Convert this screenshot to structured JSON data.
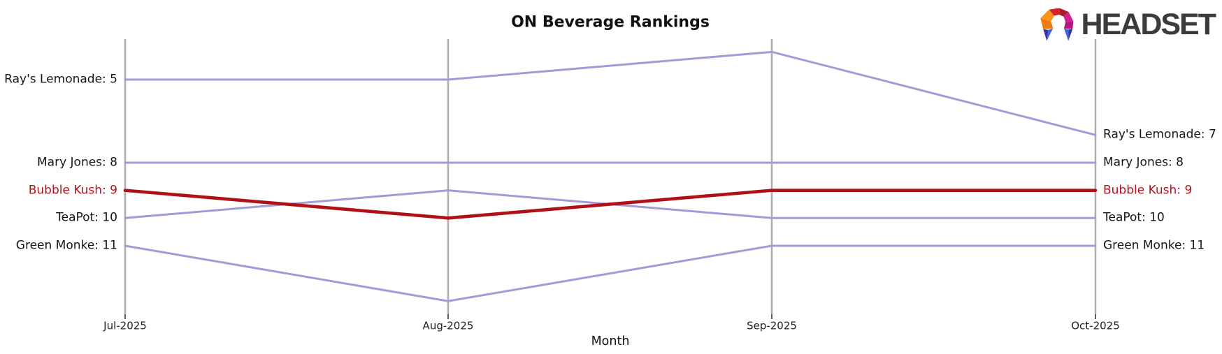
{
  "header": {
    "title": "ON Beverage Rankings"
  },
  "logo": {
    "text": "HEADSET",
    "icon": "headset-faceted-gem-mark"
  },
  "chart_data": {
    "type": "line",
    "subtype": "bump-ranking",
    "title": "ON Beverage Rankings",
    "xlabel": "Month",
    "categories": [
      "Jul-2025",
      "Aug-2025",
      "Sep-2025",
      "Oct-2025"
    ],
    "y_axis": "rank (lower number = higher position, inverted axis, no visible ticks)",
    "legend_position": "none (series labeled at line endpoints)",
    "grid": "vertical month axes only",
    "series": [
      {
        "name": "Ray's Lemonade",
        "ranks": [
          5,
          5,
          4,
          7
        ],
        "left_label": "Ray's Lemonade: 5",
        "right_label": "Ray's Lemonade: 7",
        "highlight": false
      },
      {
        "name": "Mary Jones",
        "ranks": [
          8,
          8,
          8,
          8
        ],
        "left_label": "Mary Jones: 8",
        "right_label": "Mary Jones: 8",
        "highlight": false
      },
      {
        "name": "Bubble Kush",
        "ranks": [
          9,
          10,
          9,
          9
        ],
        "left_label": "Bubble Kush: 9",
        "right_label": "Bubble Kush: 9",
        "highlight": true
      },
      {
        "name": "TeaPot",
        "ranks": [
          10,
          9,
          10,
          10
        ],
        "left_label": "TeaPot: 10",
        "right_label": "TeaPot: 10",
        "highlight": false
      },
      {
        "name": "Green Monke",
        "ranks": [
          11,
          13,
          11,
          11
        ],
        "left_label": "Green Monke: 11",
        "right_label": "Green Monke: 11",
        "highlight": false
      }
    ],
    "colors": {
      "line_default": "#a29bd8",
      "line_highlight": "#b01116",
      "label_default": "#161616",
      "label_highlight": "#b5121a",
      "axis": "#aeaeae",
      "tick": "#262626"
    }
  }
}
